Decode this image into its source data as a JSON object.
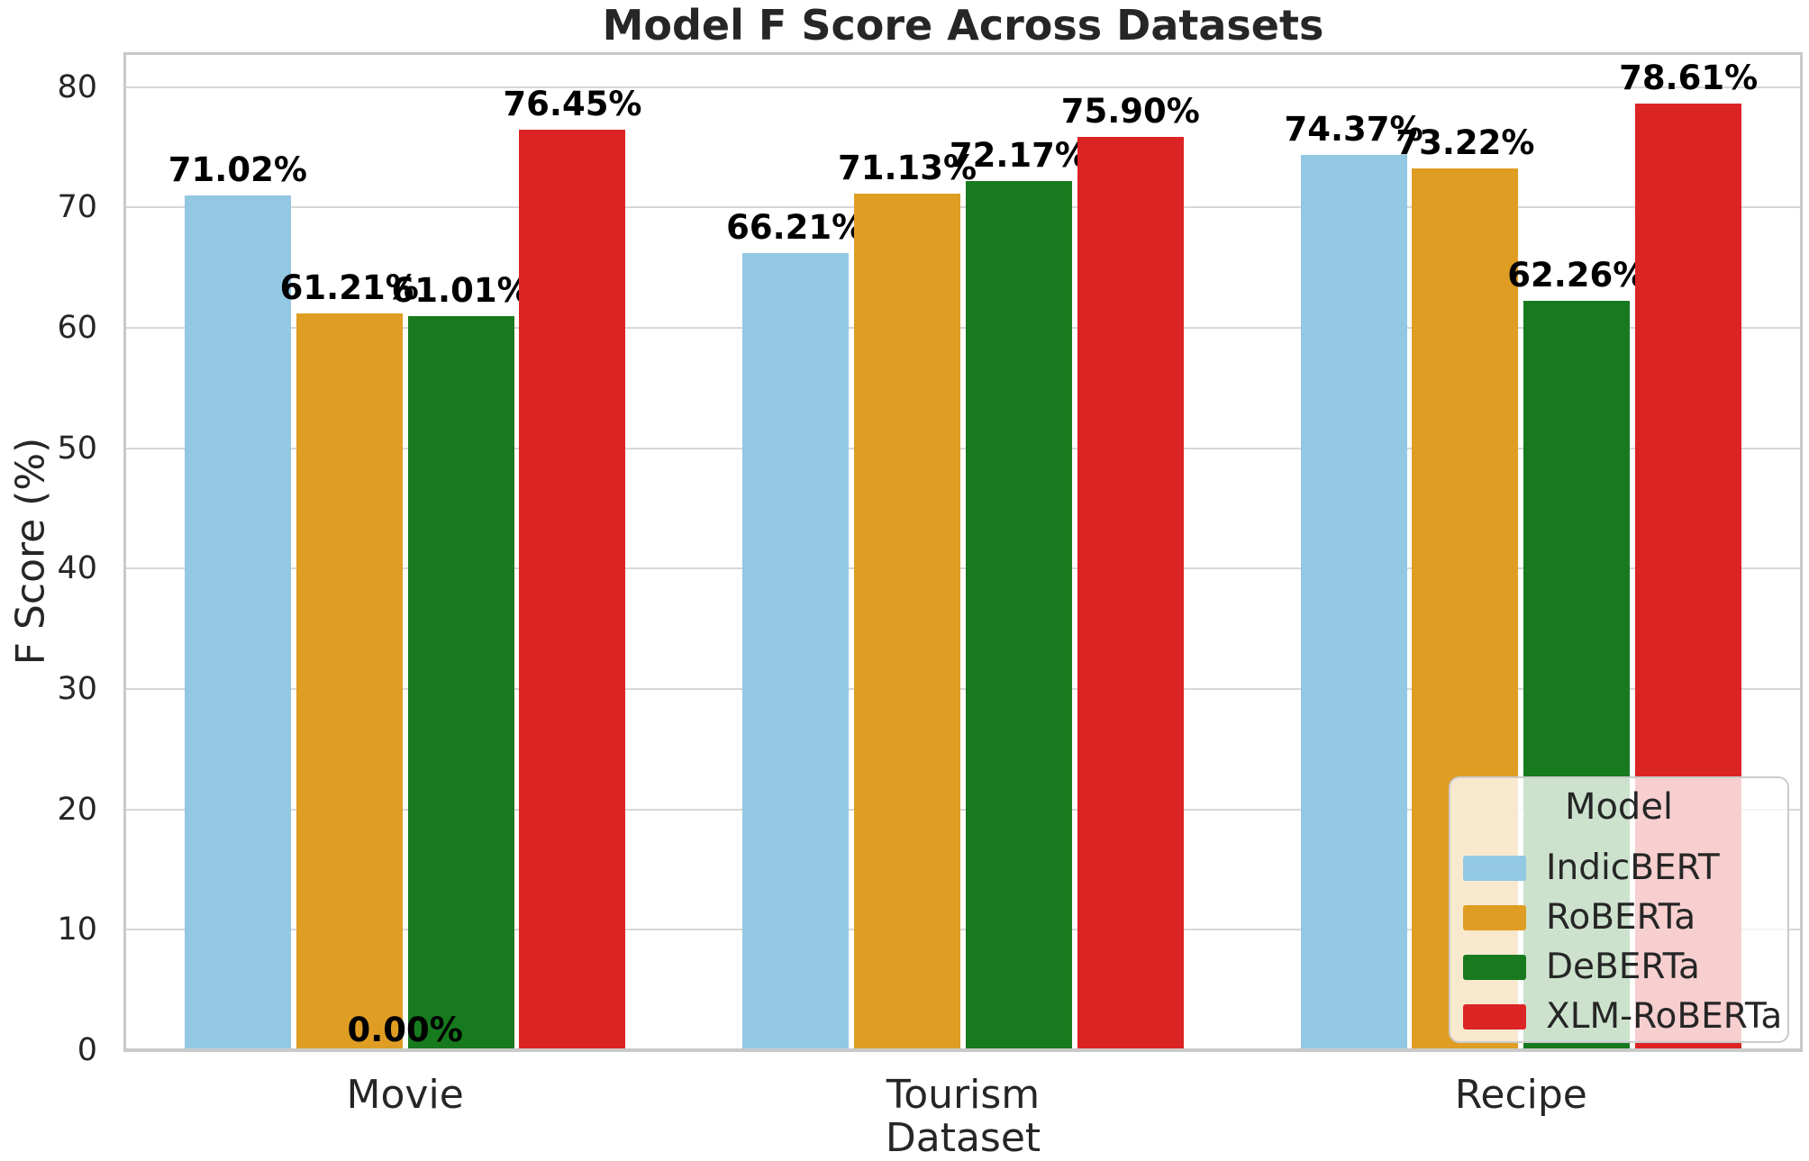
{
  "chart_data": {
    "type": "bar",
    "title": "Model F Score Across Datasets",
    "xlabel": "Dataset",
    "ylabel": "F Score (%)",
    "categories": [
      "Movie",
      "Tourism",
      "Recipe"
    ],
    "series": [
      {
        "name": "IndicBERT",
        "color": "#92C8E2",
        "values": [
          71.02,
          66.21,
          74.37
        ],
        "labels": [
          "71.02%",
          "66.21%",
          "74.37%"
        ]
      },
      {
        "name": "RoBERTa",
        "color": "#DF9D23",
        "values": [
          61.21,
          71.13,
          73.22
        ],
        "labels": [
          "61.21%",
          "71.13%",
          "73.22%"
        ]
      },
      {
        "name": "DeBERTa",
        "color": "#177A1E",
        "values": [
          61.01,
          72.17,
          62.26
        ],
        "labels": [
          "61.01%",
          "72.17%",
          "62.26%"
        ]
      },
      {
        "name": "XLM-RoBERTa",
        "color": "#DC2424",
        "values": [
          76.45,
          75.9,
          78.61
        ],
        "labels": [
          "76.45%",
          "75.90%",
          "78.61%"
        ]
      }
    ],
    "yticks": [
      0,
      10,
      20,
      30,
      40,
      50,
      60,
      70,
      80
    ],
    "ylim": [
      0,
      82.9
    ],
    "grid": "horizontal",
    "zero_annotation": {
      "text": "0.00%",
      "category": "Movie"
    },
    "legend": {
      "title": "Model",
      "position": "lower right"
    },
    "style": {
      "grid_color": "#d7d7d7",
      "spine_color": "#c9c9c9",
      "text_color": "#262626",
      "value_label_color": "#000000",
      "legend_bg": "rgba(255,255,255,0.78)"
    }
  }
}
